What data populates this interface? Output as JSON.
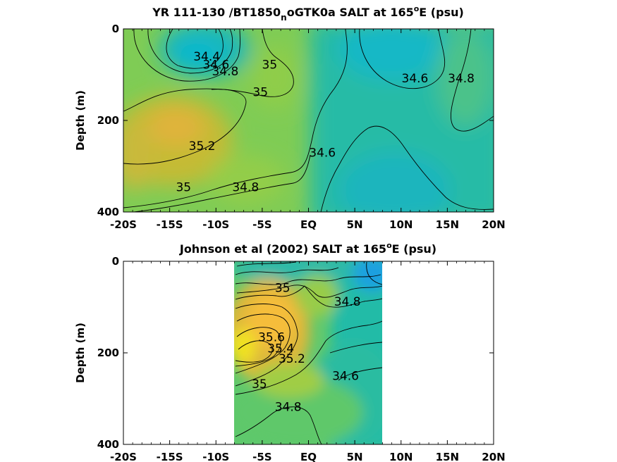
{
  "chart_data": [
    {
      "type": "heatmap",
      "title_main": "YR 111-130 /BT1850",
      "title_sub": "n",
      "title_rest": "oGTK0a SALT at 165",
      "title_sup": "o",
      "title_end": "E (psu)",
      "ylabel": "Depth (m)",
      "x_ticks": [
        "-20S",
        "-15S",
        "-10S",
        "-5S",
        "EQ",
        "5N",
        "10N",
        "15N",
        "20N"
      ],
      "x_tick_values": [
        -20,
        -15,
        -10,
        -5,
        0,
        5,
        10,
        15,
        20
      ],
      "y_ticks": [
        "0",
        "200",
        "400"
      ],
      "y_tick_values": [
        0,
        200,
        400
      ],
      "xlim": [
        -20,
        20
      ],
      "ylim": [
        400,
        0
      ],
      "data_xlim": [
        -20,
        20
      ],
      "contour_labels": [
        {
          "text": "34.4",
          "x": -11.0,
          "y": 60
        },
        {
          "text": "34.6",
          "x": -10.0,
          "y": 78
        },
        {
          "text": "34.8",
          "x": -9.0,
          "y": 92
        },
        {
          "text": "35",
          "x": -4.2,
          "y": 78
        },
        {
          "text": "35",
          "x": -5.2,
          "y": 138
        },
        {
          "text": "35.2",
          "x": -11.5,
          "y": 255
        },
        {
          "text": "35",
          "x": -13.5,
          "y": 345
        },
        {
          "text": "34.8",
          "x": -6.8,
          "y": 345
        },
        {
          "text": "34.6",
          "x": 1.5,
          "y": 270
        },
        {
          "text": "34.6",
          "x": 11.5,
          "y": 108
        },
        {
          "text": "34.8",
          "x": 16.5,
          "y": 108
        }
      ]
    },
    {
      "type": "heatmap",
      "title_main": "Johnson et al (2002) SALT at 165",
      "title_sup": "o",
      "title_end": "E (psu)",
      "ylabel": "Depth (m)",
      "x_ticks": [
        "-20S",
        "-15S",
        "-10S",
        "-5S",
        "EQ",
        "5N",
        "10N",
        "15N",
        "20N"
      ],
      "x_tick_values": [
        -20,
        -15,
        -10,
        -5,
        0,
        5,
        10,
        15,
        20
      ],
      "y_ticks": [
        "0",
        "200",
        "400"
      ],
      "y_tick_values": [
        0,
        200,
        400
      ],
      "xlim": [
        -20,
        20
      ],
      "ylim": [
        400,
        0
      ],
      "data_xlim": [
        -8,
        8
      ],
      "contour_labels": [
        {
          "text": "35",
          "x": -2.8,
          "y": 58
        },
        {
          "text": "34.8",
          "x": 4.2,
          "y": 88
        },
        {
          "text": "35.6",
          "x": -4.0,
          "y": 165
        },
        {
          "text": "35.4",
          "x": -3.0,
          "y": 190
        },
        {
          "text": "35.2",
          "x": -1.8,
          "y": 212
        },
        {
          "text": "35",
          "x": -5.3,
          "y": 268
        },
        {
          "text": "34.6",
          "x": 4.0,
          "y": 250
        },
        {
          "text": "34.8",
          "x": -2.2,
          "y": 318
        }
      ]
    }
  ]
}
